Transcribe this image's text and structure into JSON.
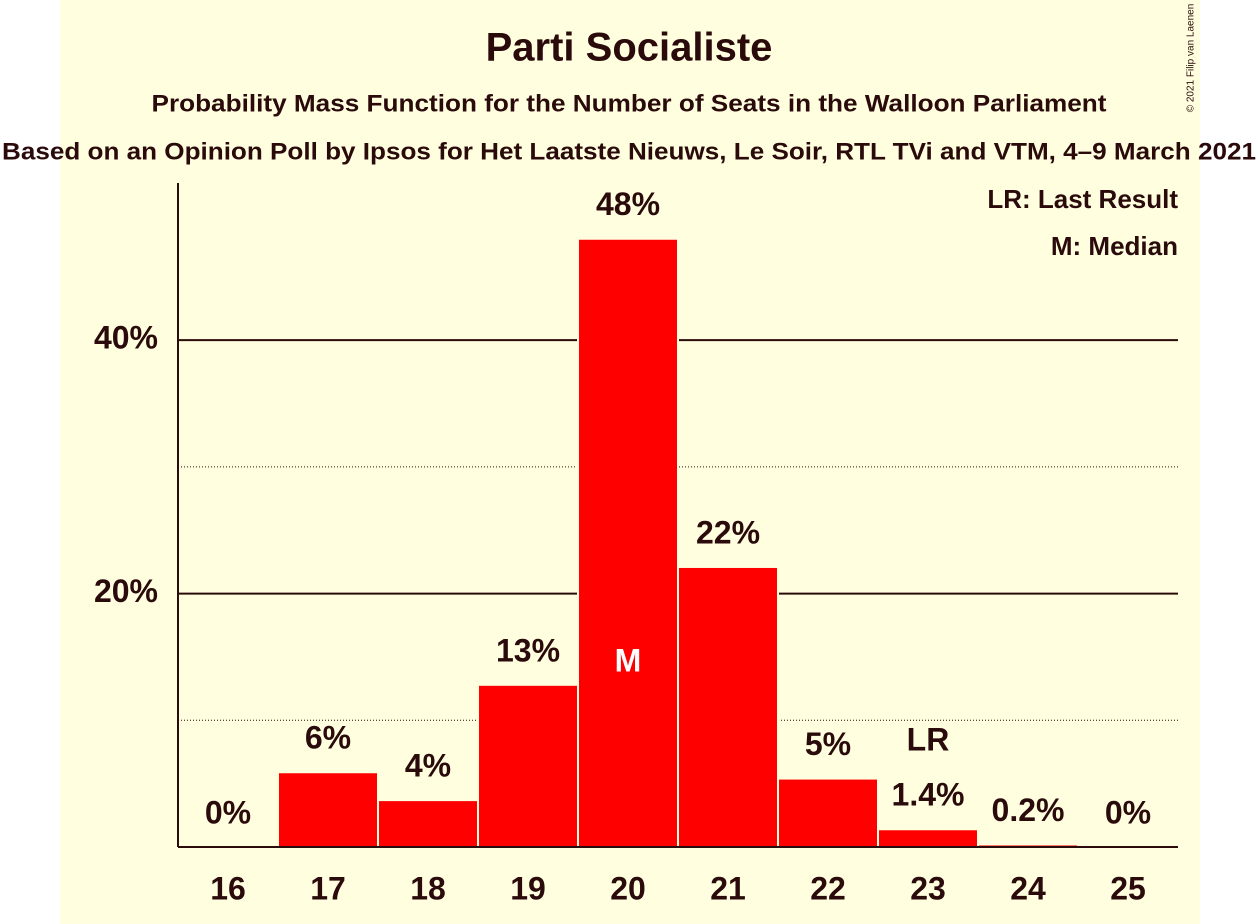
{
  "chart_data": {
    "type": "bar",
    "title": "Parti Socialiste",
    "subtitle": "Probability Mass Function for the Number of Seats in the Walloon Parliament",
    "subtitle2": "Based on an Opinion Poll by Ipsos for Het Laatste Nieuws, Le Soir, RTL TVi and VTM, 4–9 March 2021",
    "copyright": "© 2021 Filip van Laenen",
    "categories": [
      "16",
      "17",
      "18",
      "19",
      "20",
      "21",
      "22",
      "23",
      "24",
      "25"
    ],
    "values": [
      0,
      5.9,
      3.7,
      12.8,
      48.0,
      22.1,
      5.4,
      1.4,
      0.2,
      0
    ],
    "value_labels": [
      "0%",
      "6%",
      "4%",
      "13%",
      "48%",
      "22%",
      "5%",
      "1.4%",
      "0.2%",
      "0%"
    ],
    "color": "#ff0000",
    "ylim": [
      0,
      52.4
    ],
    "yticks": [
      {
        "value": 20,
        "label": "20%"
      },
      {
        "value": 40,
        "label": "40%"
      }
    ],
    "minor_grid": [
      10,
      30
    ],
    "grid": true,
    "median": "20",
    "median_label": "M",
    "last_result": "23",
    "last_result_label": "LR",
    "legend": [
      "LR: Last Result",
      "M: Median"
    ],
    "legend_position": "top-right"
  }
}
